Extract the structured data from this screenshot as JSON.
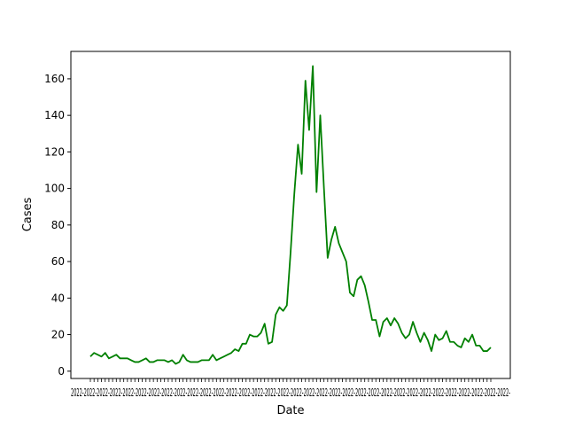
{
  "chart_data": {
    "type": "line",
    "title": "",
    "xlabel": "Date",
    "ylabel": "Cases",
    "ylim": [
      -4,
      175
    ],
    "yticks": [
      0,
      20,
      40,
      60,
      80,
      100,
      120,
      140,
      160
    ],
    "grid": false,
    "legend": "none",
    "x_tick_labels_note": "dense overlapping date tick labels (illegible)",
    "series": [
      {
        "color": "#008000",
        "values": [
          8,
          10,
          9,
          8,
          10,
          7,
          8,
          9,
          7,
          7,
          7,
          6,
          5,
          5,
          6,
          7,
          5,
          5,
          6,
          6,
          6,
          5,
          6,
          4,
          5,
          9,
          6,
          5,
          5,
          5,
          6,
          6,
          6,
          9,
          6,
          7,
          8,
          9,
          10,
          12,
          11,
          15,
          15,
          20,
          19,
          19,
          21,
          26,
          15,
          16,
          31,
          35,
          33,
          36,
          65,
          97,
          124,
          108,
          159,
          132,
          167,
          98,
          140,
          100,
          62,
          72,
          79,
          70,
          65,
          60,
          43,
          41,
          50,
          52,
          47,
          38,
          28,
          28,
          19,
          27,
          29,
          25,
          29,
          26,
          21,
          18,
          20,
          27,
          21,
          16,
          21,
          17,
          11,
          20,
          17,
          18,
          22,
          16,
          16,
          14,
          13,
          18,
          16,
          20,
          14,
          14,
          11,
          11,
          13
        ]
      }
    ]
  }
}
